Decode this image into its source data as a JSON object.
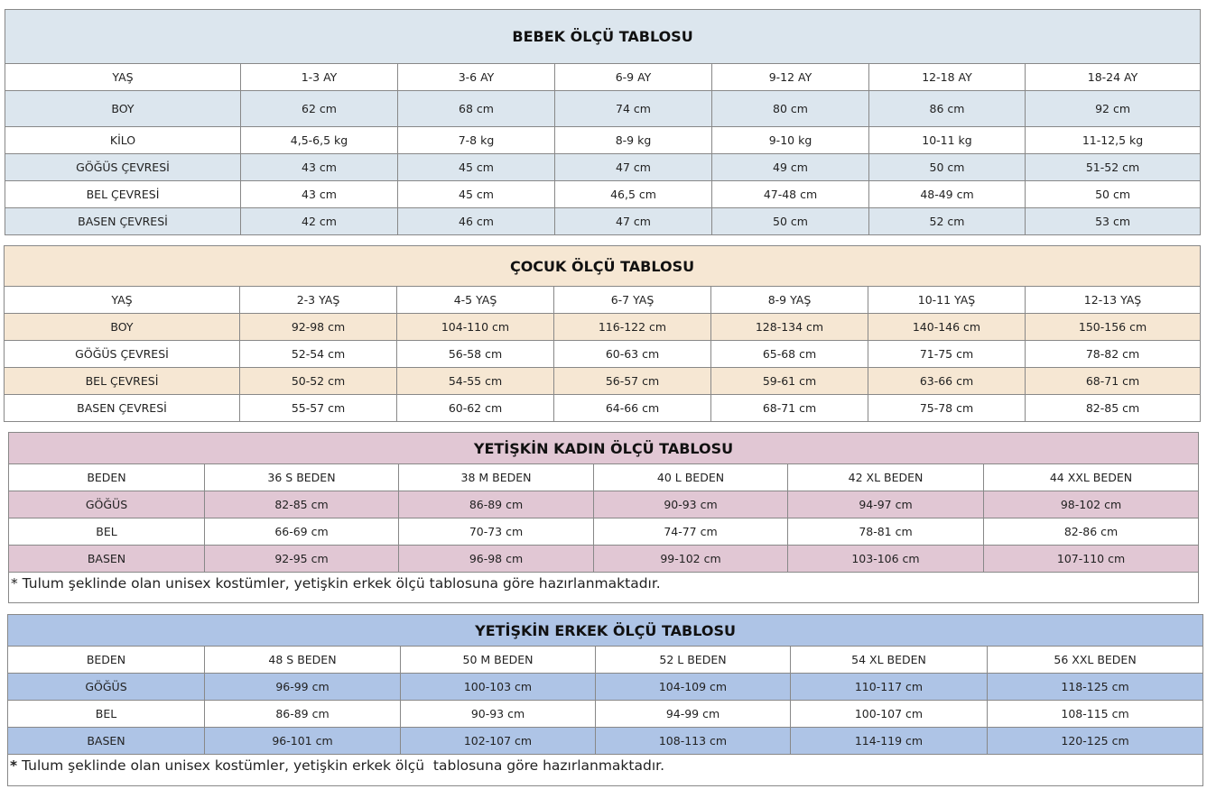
{
  "tables": [
    {
      "id": "bebek",
      "title": "BEBEK ÖLÇÜ TABLOSU",
      "color": "#dce6ee",
      "rows": [
        [
          "YAŞ",
          "1-3 AY",
          "3-6 AY",
          "6-9 AY",
          "9-12 AY",
          "12-18 AY",
          "18-24 AY"
        ],
        [
          "BOY",
          "62 cm",
          "68 cm",
          "74 cm",
          "80 cm",
          "86 cm",
          "92 cm"
        ],
        [
          "KİLO",
          "4,5-6,5 kg",
          "7-8 kg",
          "8-9 kg",
          "9-10 kg",
          "10-11 kg",
          "11-12,5 kg"
        ],
        [
          "GÖĞÜS ÇEVRESİ",
          "43 cm",
          "45 cm",
          "47 cm",
          "49 cm",
          "50 cm",
          "51-52 cm"
        ],
        [
          "BEL ÇEVRESİ",
          "43 cm",
          "45 cm",
          "46,5 cm",
          "47-48 cm",
          "48-49 cm",
          "50 cm"
        ],
        [
          "BASEN ÇEVRESİ",
          "42 cm",
          "46 cm",
          "47 cm",
          "50 cm",
          "52 cm",
          "53 cm"
        ]
      ]
    },
    {
      "id": "cocuk",
      "title": "ÇOCUK ÖLÇÜ TABLOSU",
      "color": "#f6e7d3",
      "rows": [
        [
          "YAŞ",
          "2-3 YAŞ",
          "4-5 YAŞ",
          "6-7 YAŞ",
          "8-9 YAŞ",
          "10-11 YAŞ",
          "12-13 YAŞ"
        ],
        [
          "BOY",
          "92-98 cm",
          "104-110 cm",
          "116-122 cm",
          "128-134 cm",
          "140-146 cm",
          "150-156 cm"
        ],
        [
          "GÖĞÜS ÇEVRESİ",
          "52-54 cm",
          "56-58 cm",
          "60-63 cm",
          "65-68 cm",
          "71-75 cm",
          "78-82 cm"
        ],
        [
          "BEL ÇEVRESİ",
          "50-52 cm",
          "54-55 cm",
          "56-57 cm",
          "59-61 cm",
          "63-66 cm",
          "68-71 cm"
        ],
        [
          "BASEN ÇEVRESİ",
          "55-57 cm",
          "60-62 cm",
          "64-66 cm",
          "68-71 cm",
          "75-78 cm",
          "82-85 cm"
        ]
      ]
    },
    {
      "id": "kadin",
      "title": "YETİŞKİN KADIN ÖLÇÜ TABLOSU",
      "color": "#e1c7d4",
      "rows": [
        [
          "BEDEN",
          "36 S BEDEN",
          "38 M BEDEN",
          "40 L BEDEN",
          "42 XL BEDEN",
          "44 XXL BEDEN"
        ],
        [
          "GÖĞÜS",
          "82-85 cm",
          "86-89 cm",
          "90-93 cm",
          "94-97 cm",
          "98-102 cm"
        ],
        [
          "BEL",
          "66-69 cm",
          "70-73 cm",
          "74-77 cm",
          "78-81 cm",
          "82-86 cm"
        ],
        [
          "BASEN",
          "92-95 cm",
          "96-98 cm",
          "99-102 cm",
          "103-106 cm",
          "107-110 cm"
        ]
      ],
      "note_star": "*",
      "note": " Tulum şeklinde olan unisex kostümler, yetişkin erkek ölçü tablosuna göre hazırlanmaktadır."
    },
    {
      "id": "erkek",
      "title": "YETİŞKİN ERKEK ÖLÇÜ TABLOSU",
      "color": "#aec4e6",
      "rows": [
        [
          "BEDEN",
          "48 S BEDEN",
          "50 M BEDEN",
          "52 L BEDEN",
          "54 XL BEDEN",
          "56 XXL BEDEN"
        ],
        [
          "GÖĞÜS",
          "96-99 cm",
          "100-103 cm",
          "104-109 cm",
          "110-117 cm",
          "118-125 cm"
        ],
        [
          "BEL",
          "86-89 cm",
          "90-93 cm",
          "94-99 cm",
          "100-107 cm",
          "108-115 cm"
        ],
        [
          "BASEN",
          "96-101 cm",
          "102-107 cm",
          "108-113 cm",
          "114-119 cm",
          "120-125 cm"
        ]
      ],
      "note_star": "*",
      "note": " Tulum şeklinde olan unisex kostümler, yetişkin erkek ölçü  tablosuna göre hazırlanmaktadır."
    }
  ]
}
